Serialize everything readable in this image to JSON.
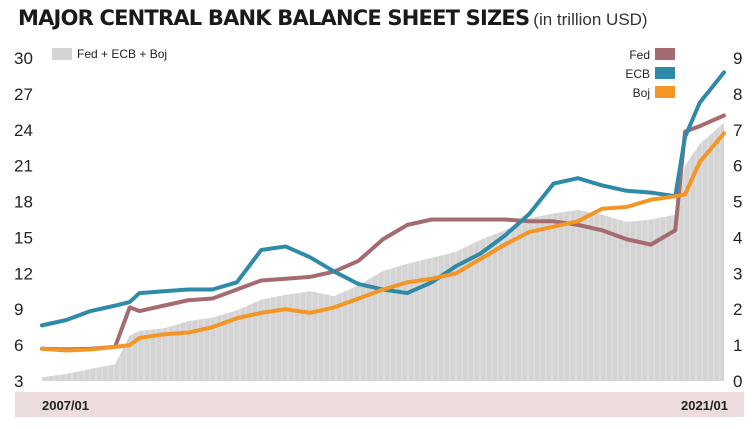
{
  "title": "MAJOR CENTRAL BANK BALANCE SHEET SIZES",
  "subtitle": "(in trillion USD)",
  "colors": {
    "total": "#d4d4d4",
    "fed": "#a56b70",
    "ecb": "#2f8aa8",
    "boj": "#f39625",
    "date_band": "#ecdcdc"
  },
  "chart_data": {
    "type": "line",
    "x_start_label": "2007/01",
    "x_end_label": "2021/01",
    "x": [
      2007.0,
      2007.5,
      2008.0,
      2008.5,
      2008.8,
      2009.0,
      2009.5,
      2010.0,
      2010.5,
      2011.0,
      2011.5,
      2012.0,
      2012.5,
      2013.0,
      2013.5,
      2014.0,
      2014.5,
      2015.0,
      2015.5,
      2016.0,
      2016.5,
      2017.0,
      2017.5,
      2018.0,
      2018.5,
      2019.0,
      2019.5,
      2020.0,
      2020.2,
      2020.5,
      2021.0
    ],
    "left_axis": {
      "min": 3,
      "max": 30,
      "ticks": [
        3,
        6,
        9,
        12,
        15,
        18,
        21,
        24,
        27,
        30
      ]
    },
    "right_axis": {
      "min": 0,
      "max": 9,
      "ticks": [
        0,
        1,
        2,
        3,
        4,
        5,
        6,
        7,
        8,
        9
      ]
    },
    "series": [
      {
        "name": "Fed + ECB + Boj",
        "kind": "area",
        "axis": "left",
        "values": [
          3.3,
          3.6,
          4.0,
          4.4,
          6.8,
          7.2,
          7.4,
          8.0,
          8.3,
          8.9,
          9.8,
          10.2,
          10.5,
          10.1,
          11.0,
          12.2,
          12.8,
          13.3,
          13.8,
          14.8,
          15.6,
          16.6,
          17.0,
          17.3,
          16.9,
          16.3,
          16.5,
          16.9,
          21.0,
          22.8,
          24.6
        ]
      },
      {
        "name": "Fed",
        "kind": "line",
        "axis": "right",
        "values": [
          0.9,
          0.88,
          0.9,
          0.95,
          2.05,
          1.95,
          2.1,
          2.25,
          2.3,
          2.55,
          2.8,
          2.85,
          2.9,
          3.05,
          3.35,
          3.95,
          4.35,
          4.5,
          4.5,
          4.5,
          4.5,
          4.45,
          4.45,
          4.35,
          4.2,
          3.95,
          3.8,
          4.2,
          6.95,
          7.1,
          7.4
        ]
      },
      {
        "name": "ECB",
        "kind": "line",
        "axis": "right",
        "values": [
          1.55,
          1.7,
          1.95,
          2.1,
          2.2,
          2.45,
          2.5,
          2.55,
          2.55,
          2.75,
          3.65,
          3.75,
          3.45,
          3.05,
          2.7,
          2.55,
          2.45,
          2.75,
          3.2,
          3.55,
          4.05,
          4.65,
          5.5,
          5.65,
          5.45,
          5.3,
          5.25,
          5.15,
          6.8,
          7.75,
          8.6
        ]
      },
      {
        "name": "Boj",
        "kind": "line",
        "axis": "right",
        "values": [
          0.9,
          0.85,
          0.88,
          0.95,
          1.0,
          1.2,
          1.3,
          1.35,
          1.5,
          1.75,
          1.9,
          2.0,
          1.9,
          2.05,
          2.3,
          2.55,
          2.75,
          2.85,
          3.0,
          3.4,
          3.8,
          4.15,
          4.3,
          4.45,
          4.8,
          4.85,
          5.05,
          5.15,
          5.2,
          6.1,
          6.9
        ]
      }
    ]
  }
}
